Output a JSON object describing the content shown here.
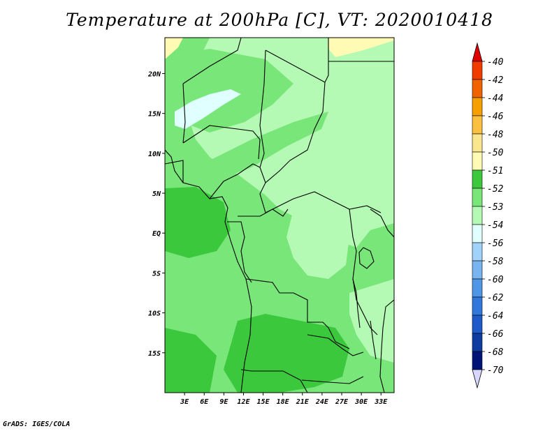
{
  "title": "Temperature at 200hPa [C], VT: 2020010418",
  "credit": "GrADS: IGES/COLA",
  "map": {
    "lon_range": [
      0,
      35
    ],
    "lat_range": [
      -20,
      24.5
    ],
    "x_ticks": [
      "3E",
      "6E",
      "9E",
      "12E",
      "15E",
      "18E",
      "21E",
      "24E",
      "27E",
      "30E",
      "33E"
    ],
    "y_ticks": [
      "20N",
      "15N",
      "10N",
      "5N",
      "EQ",
      "5S",
      "10S",
      "15S"
    ]
  },
  "legend": {
    "top_triangle_color": "#e00000",
    "bottom_triangle_color": "#d8d8ff",
    "items": [
      {
        "label": "-40",
        "color": "#e00000"
      },
      {
        "label": "-42",
        "color": "#f03c00"
      },
      {
        "label": "-44",
        "color": "#f06400"
      },
      {
        "label": "-46",
        "color": "#f5a000"
      },
      {
        "label": "-48",
        "color": "#fac040"
      },
      {
        "label": "-50",
        "color": "#fae68c"
      },
      {
        "label": "-51",
        "color": "#fffab4"
      },
      {
        "label": "-52",
        "color": "#3cc83c"
      },
      {
        "label": "-53",
        "color": "#78e678"
      },
      {
        "label": "-54",
        "color": "#b4fab4"
      },
      {
        "label": "-56",
        "color": "#e0ffff"
      },
      {
        "label": "-58",
        "color": "#a0d2fa"
      },
      {
        "label": "-60",
        "color": "#78b4f0"
      },
      {
        "label": "-62",
        "color": "#5096e6"
      },
      {
        "label": "-64",
        "color": "#3278dc"
      },
      {
        "label": "-66",
        "color": "#1e5ac8"
      },
      {
        "label": "-68",
        "color": "#0f3ca0"
      },
      {
        "label": "-70",
        "color": "#001478"
      }
    ]
  }
}
